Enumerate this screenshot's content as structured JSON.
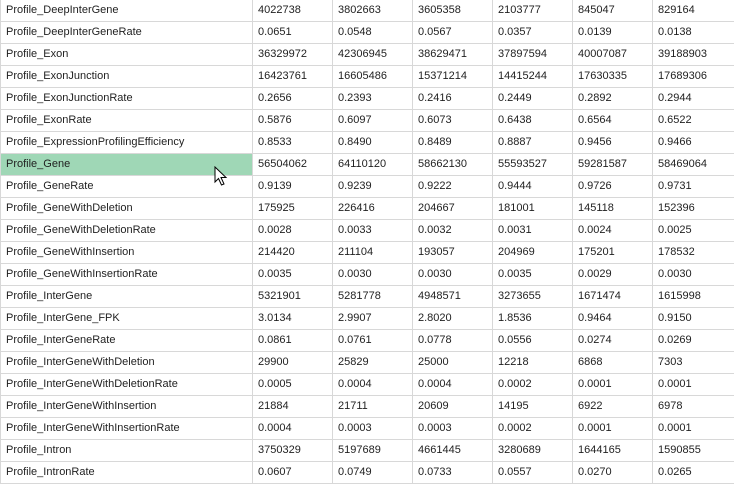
{
  "rows": [
    [
      "Profile_DeepInterGene",
      "4022738",
      "3802663",
      "3605358",
      "2103777",
      "845047",
      "829164"
    ],
    [
      "Profile_DeepInterGeneRate",
      "0.0651",
      "0.0548",
      "0.0567",
      "0.0357",
      "0.0139",
      "0.0138"
    ],
    [
      "Profile_Exon",
      "36329972",
      "42306945",
      "38629471",
      "37897594",
      "40007087",
      "39188903"
    ],
    [
      "Profile_ExonJunction",
      "16423761",
      "16605486",
      "15371214",
      "14415244",
      "17630335",
      "17689306"
    ],
    [
      "Profile_ExonJunctionRate",
      "0.2656",
      "0.2393",
      "0.2416",
      "0.2449",
      "0.2892",
      "0.2944"
    ],
    [
      "Profile_ExonRate",
      "0.5876",
      "0.6097",
      "0.6073",
      "0.6438",
      "0.6564",
      "0.6522"
    ],
    [
      "Profile_ExpressionProfilingEfficiency",
      "0.8533",
      "0.8490",
      "0.8489",
      "0.8887",
      "0.9456",
      "0.9466"
    ],
    [
      "Profile_Gene",
      "56504062",
      "64110120",
      "58662130",
      "55593527",
      "59281587",
      "58469064"
    ],
    [
      "Profile_GeneRate",
      "0.9139",
      "0.9239",
      "0.9222",
      "0.9444",
      "0.9726",
      "0.9731"
    ],
    [
      "Profile_GeneWithDeletion",
      "175925",
      "226416",
      "204667",
      "181001",
      "145118",
      "152396"
    ],
    [
      "Profile_GeneWithDeletionRate",
      "0.0028",
      "0.0033",
      "0.0032",
      "0.0031",
      "0.0024",
      "0.0025"
    ],
    [
      "Profile_GeneWithInsertion",
      "214420",
      "211104",
      "193057",
      "204969",
      "175201",
      "178532"
    ],
    [
      "Profile_GeneWithInsertionRate",
      "0.0035",
      "0.0030",
      "0.0030",
      "0.0035",
      "0.0029",
      "0.0030"
    ],
    [
      "Profile_InterGene",
      "5321901",
      "5281778",
      "4948571",
      "3273655",
      "1671474",
      "1615998"
    ],
    [
      "Profile_InterGene_FPK",
      "3.0134",
      "2.9907",
      "2.8020",
      "1.8536",
      "0.9464",
      "0.9150"
    ],
    [
      "Profile_InterGeneRate",
      "0.0861",
      "0.0761",
      "0.0778",
      "0.0556",
      "0.0274",
      "0.0269"
    ],
    [
      "Profile_InterGeneWithDeletion",
      "29900",
      "25829",
      "25000",
      "12218",
      "6868",
      "7303"
    ],
    [
      "Profile_InterGeneWithDeletionRate",
      "0.0005",
      "0.0004",
      "0.0004",
      "0.0002",
      "0.0001",
      "0.0001"
    ],
    [
      "Profile_InterGeneWithInsertion",
      "21884",
      "21711",
      "20609",
      "14195",
      "6922",
      "6978"
    ],
    [
      "Profile_InterGeneWithInsertionRate",
      "0.0004",
      "0.0003",
      "0.0003",
      "0.0002",
      "0.0001",
      "0.0001"
    ],
    [
      "Profile_Intron",
      "3750329",
      "5197689",
      "4661445",
      "3280689",
      "1644165",
      "1590855"
    ],
    [
      "Profile_IntronRate",
      "0.0607",
      "0.0749",
      "0.0733",
      "0.0557",
      "0.0270",
      "0.0265"
    ]
  ],
  "selected_row": 7,
  "colors": {
    "selection": "#9fd7b6",
    "gridline": "#d8d8d8"
  },
  "icons": {
    "cursor": "mouse-pointer-icon"
  }
}
